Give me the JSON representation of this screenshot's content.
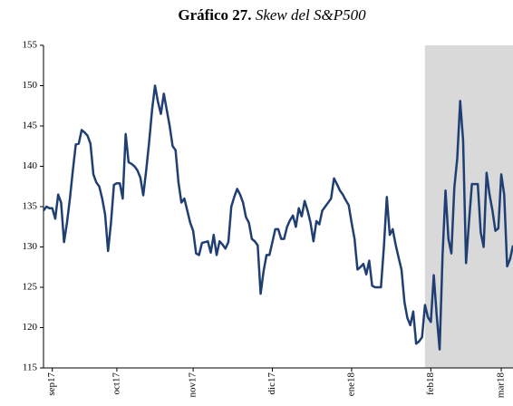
{
  "chart_data": {
    "type": "line",
    "title": "Gráfico 27.",
    "subtitle": "Skew del S&P500",
    "categories": [
      null,
      null,
      null,
      "sep17",
      null,
      null,
      null,
      null,
      null,
      null,
      null,
      null,
      null,
      null,
      null,
      null,
      null,
      null,
      null,
      null,
      null,
      null,
      null,
      null,
      null,
      "oct17",
      null,
      null,
      null,
      null,
      null,
      null,
      null,
      null,
      null,
      null,
      null,
      null,
      null,
      null,
      null,
      null,
      null,
      null,
      null,
      null,
      null,
      null,
      null,
      null,
      null,
      "nov17",
      null,
      null,
      null,
      null,
      null,
      null,
      null,
      null,
      null,
      null,
      null,
      null,
      null,
      null,
      null,
      null,
      null,
      null,
      null,
      null,
      null,
      null,
      null,
      null,
      null,
      null,
      "dic17",
      null,
      null,
      null,
      null,
      null,
      null,
      null,
      null,
      null,
      null,
      null,
      null,
      null,
      null,
      null,
      null,
      null,
      null,
      null,
      null,
      null,
      null,
      null,
      null,
      null,
      null,
      "ene18",
      null,
      null,
      null,
      null,
      null,
      null,
      null,
      null,
      null,
      null,
      null,
      null,
      null,
      null,
      null,
      null,
      null,
      null,
      null,
      null,
      null,
      null,
      null,
      null,
      null,
      null,
      "feb18",
      null,
      null,
      null,
      null,
      null,
      null,
      null,
      null,
      null,
      null,
      null,
      null,
      null,
      null,
      null,
      null,
      null,
      null,
      null,
      null,
      null,
      null,
      null,
      "mar18",
      null,
      null,
      null,
      null
    ],
    "values": [
      134.5,
      135,
      134.8,
      134.8,
      133.5,
      136.5,
      135.5,
      130.6,
      133,
      136,
      139.5,
      142.7,
      142.8,
      144.5,
      144.2,
      143.8,
      142.8,
      139,
      138,
      137.5,
      136,
      134,
      129.5,
      133,
      137.7,
      137.9,
      137.9,
      136,
      144,
      140.5,
      140.3,
      140,
      139.5,
      138.6,
      136.4,
      139.5,
      143,
      147,
      150,
      148,
      146.5,
      149,
      147,
      145,
      142.5,
      142,
      138,
      135.5,
      136,
      134.5,
      133,
      132,
      129.2,
      129,
      130.5,
      130.6,
      130.7,
      129.3,
      131.5,
      129,
      130.7,
      130.3,
      129.8,
      130.6,
      135,
      136.2,
      137.2,
      136.5,
      135.5,
      133.7,
      133,
      131,
      130.7,
      130.2,
      124.2,
      127,
      129,
      129,
      130.6,
      132.2,
      132.2,
      131,
      131,
      132.5,
      133.3,
      133.9,
      132.5,
      134.8,
      133.8,
      135.7,
      134.5,
      133,
      130.7,
      133.2,
      132.8,
      134.5,
      135,
      135.5,
      136,
      138.5,
      137.8,
      137,
      136.5,
      135.8,
      135.2,
      133,
      131,
      127.2,
      127.5,
      127.9,
      126.6,
      128.3,
      125.2,
      125,
      125,
      125,
      130,
      136.2,
      131.5,
      132.2,
      130.3,
      128.7,
      127.2,
      123.2,
      121.2,
      120.3,
      122,
      118,
      118.3,
      118.8,
      122.8,
      121.3,
      120.7,
      126.5,
      121.5,
      117.3,
      129,
      137,
      131,
      129.2,
      137.3,
      141,
      148.1,
      143.2,
      128,
      133.1,
      137.8,
      137.8,
      137.8,
      131.8,
      130,
      139.2,
      136.5,
      134.5,
      132,
      132.3,
      139,
      136.5,
      127.6,
      128.5,
      130.2
    ],
    "color": "#1f3f73",
    "shade_color": "#d9d9d9",
    "shade_start_index": 130,
    "ylim": [
      115,
      155
    ],
    "yticks": [
      115,
      120,
      125,
      130,
      135,
      140,
      145,
      150,
      155
    ],
    "grid": false
  }
}
